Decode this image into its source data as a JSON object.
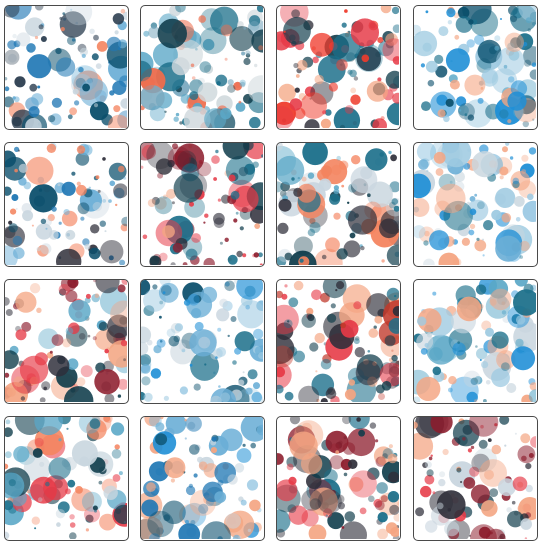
{
  "gallery": {
    "rows": 4,
    "columns": 4,
    "tiles": [
      {
        "id": "tile-1",
        "palette": "mixed-blue",
        "colors": [
          "#1f77b4",
          "#6aaed6",
          "#0b4f6c",
          "#f4845f",
          "#c9d6df",
          "#2c3e50"
        ]
      },
      {
        "id": "tile-2",
        "palette": "mixed-teal",
        "colors": [
          "#1b6f8a",
          "#5aa7c7",
          "#0e3b4a",
          "#ee6c4d",
          "#cfd8dc",
          "#7aa9bf"
        ]
      },
      {
        "id": "tile-3",
        "palette": "warm-dark",
        "colors": [
          "#e63946",
          "#0e3b4a",
          "#2f2f3a",
          "#f4a582",
          "#1b6f8a",
          "#ef3b2c"
        ]
      },
      {
        "id": "tile-4",
        "palette": "light-blue",
        "colors": [
          "#1f8fd6",
          "#5aa7c7",
          "#0b4f6c",
          "#9ecae1",
          "#f4a582",
          "#1b6f8a"
        ]
      },
      {
        "id": "tile-5",
        "palette": "mixed-blue",
        "colors": [
          "#1f77b4",
          "#0b4f6c",
          "#f4845f",
          "#2f2f3a",
          "#6aaed6",
          "#c9d6df"
        ]
      },
      {
        "id": "tile-6",
        "palette": "dark-red",
        "colors": [
          "#0e3b4a",
          "#2f2f3a",
          "#e63946",
          "#1b6f8a",
          "#f4a582",
          "#8c1c2c"
        ]
      },
      {
        "id": "tile-7",
        "palette": "mixed-teal",
        "colors": [
          "#1b6f8a",
          "#0e3b4a",
          "#f4845f",
          "#5aa7c7",
          "#2f2f3a",
          "#c9d6df"
        ]
      },
      {
        "id": "tile-8",
        "palette": "light-blue",
        "colors": [
          "#1f8fd6",
          "#6aaed6",
          "#9ecae1",
          "#1b6f8a",
          "#f4a582",
          "#c9d6df"
        ]
      },
      {
        "id": "tile-9",
        "palette": "dark-red",
        "colors": [
          "#8c1c2c",
          "#2f2f3a",
          "#e63946",
          "#0e3b4a",
          "#f4a582",
          "#5aa7c7"
        ]
      },
      {
        "id": "tile-10",
        "palette": "light-blue",
        "colors": [
          "#1f8fd6",
          "#6aaed6",
          "#9ecae1",
          "#1b6f8a",
          "#c9d6df",
          "#0b4f6c"
        ]
      },
      {
        "id": "tile-11",
        "palette": "warm-dark",
        "colors": [
          "#c0392b",
          "#2f2f3a",
          "#0e3b4a",
          "#e63946",
          "#f4a582",
          "#1b6f8a"
        ]
      },
      {
        "id": "tile-12",
        "palette": "light-blue",
        "colors": [
          "#1f8fd6",
          "#5aa7c7",
          "#9ecae1",
          "#1b6f8a",
          "#f4a582",
          "#c9d6df"
        ]
      },
      {
        "id": "tile-13",
        "palette": "mixed-teal",
        "colors": [
          "#1b6f8a",
          "#0e3b4a",
          "#5aa7c7",
          "#f4845f",
          "#e63946",
          "#c9d6df"
        ]
      },
      {
        "id": "tile-14",
        "palette": "mixed-blue",
        "colors": [
          "#1f77b4",
          "#1f8fd6",
          "#0b4f6c",
          "#6aaed6",
          "#f4a582",
          "#c9d6df"
        ]
      },
      {
        "id": "tile-15",
        "palette": "dark-red",
        "colors": [
          "#0e3b4a",
          "#2f2f3a",
          "#e63946",
          "#8c1c2c",
          "#1b6f8a",
          "#f4a582"
        ]
      },
      {
        "id": "tile-16",
        "palette": "warm-dark",
        "colors": [
          "#2f2f3a",
          "#8c1c2c",
          "#e63946",
          "#f4a582",
          "#0e3b4a",
          "#c9d6df"
        ]
      }
    ]
  }
}
